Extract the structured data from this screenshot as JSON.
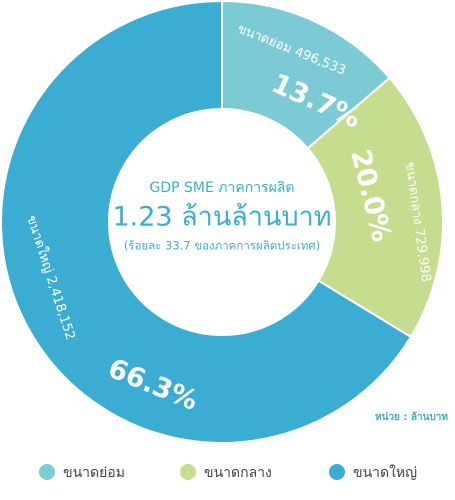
{
  "chart_data": {
    "type": "donut",
    "title": "GDP SME ภาคการผลิต",
    "subtitle": "1.23 ล้านล้านบาท",
    "note": "(ร้อยละ 33.7 ของภาคการผลิตประเทศ)",
    "unit": "หน่วย : ล้านบาท",
    "categories": [
      "ขนาดย่อม",
      "ขนาดกลาง",
      "ขนาดใหญ่"
    ],
    "values": [
      13.7,
      20.0,
      66.3
    ],
    "value_labels": [
      "13.7%",
      "20.0%",
      "66.3%"
    ],
    "amounts": [
      496533,
      729998,
      2418152
    ],
    "amount_labels": [
      "496,533",
      "729,998",
      "2,418,152"
    ],
    "colors": [
      "#7ccbd4",
      "#c6dc8e",
      "#3badd3"
    ]
  }
}
